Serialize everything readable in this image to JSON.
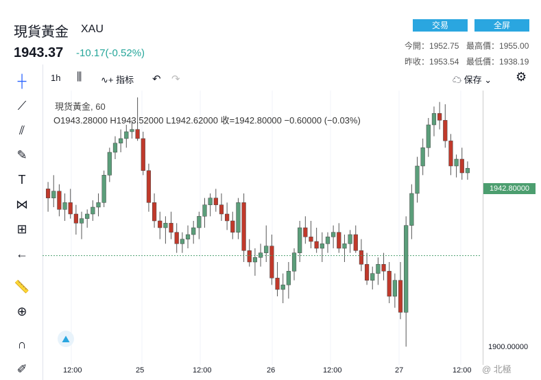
{
  "header": {
    "title": "現貨黃金",
    "symbol": "XAU",
    "price": "1943.37",
    "change": "-10.17(-0.52%)",
    "trade_btn": "交易",
    "full_btn": "全屏",
    "stats": {
      "open_label": "今開：",
      "open": "1952.75",
      "high_label": "最高價：",
      "high": "1955.00",
      "prev_label": "昨收：",
      "prev": "1953.54",
      "low_label": "最低價：",
      "low": "1938.19"
    }
  },
  "toolbar": {
    "interval": "1h",
    "indicators": "指标",
    "save": "保存"
  },
  "legend": {
    "name": "現货黃金, 60",
    "ohlc": "O1943.28000   H1943.52000   L1942.62000   收=1942.80000   −0.60000 (−0.03%)"
  },
  "axis": {
    "last_price": "1942.80000",
    "tick": "1900.00000",
    "xlabels": [
      "12:00",
      "25",
      "12:00",
      "26",
      "12:00",
      "27",
      "12:00"
    ]
  },
  "watermark": "@ 北極",
  "colors": {
    "up": "#26a69a",
    "down": "#ef5350",
    "up_fill": "#5b9e7a",
    "down_fill": "#c0392b"
  },
  "chart_data": {
    "type": "candlestick",
    "ylim": [
      1895,
      2015
    ],
    "ohlc": [
      [
        1972,
        1975,
        1962,
        1968
      ],
      [
        1968,
        1978,
        1964,
        1971
      ],
      [
        1971,
        1974,
        1960,
        1963
      ],
      [
        1963,
        1970,
        1958,
        1966
      ],
      [
        1966,
        1972,
        1959,
        1961
      ],
      [
        1961,
        1965,
        1952,
        1957
      ],
      [
        1957,
        1962,
        1950,
        1959
      ],
      [
        1959,
        1963,
        1955,
        1961
      ],
      [
        1961,
        1967,
        1958,
        1964
      ],
      [
        1964,
        1970,
        1960,
        1966
      ],
      [
        1966,
        1980,
        1964,
        1978
      ],
      [
        1978,
        1990,
        1975,
        1988
      ],
      [
        1988,
        1995,
        1985,
        1992
      ],
      [
        1992,
        1998,
        1988,
        1994
      ],
      [
        1994,
        2000,
        1990,
        1997
      ],
      [
        1997,
        2002,
        1994,
        1998
      ],
      [
        1998,
        2012,
        1993,
        1994
      ],
      [
        1994,
        1997,
        1978,
        1980
      ],
      [
        1980,
        1983,
        1962,
        1966
      ],
      [
        1966,
        1970,
        1955,
        1958
      ],
      [
        1958,
        1962,
        1950,
        1955
      ],
      [
        1955,
        1960,
        1948,
        1957
      ],
      [
        1957,
        1962,
        1950,
        1953
      ],
      [
        1953,
        1957,
        1944,
        1948
      ],
      [
        1948,
        1953,
        1944,
        1950
      ],
      [
        1950,
        1956,
        1946,
        1952
      ],
      [
        1952,
        1958,
        1948,
        1955
      ],
      [
        1955,
        1962,
        1950,
        1960
      ],
      [
        1960,
        1968,
        1955,
        1965
      ],
      [
        1965,
        1970,
        1960,
        1968
      ],
      [
        1968,
        1972,
        1962,
        1965
      ],
      [
        1965,
        1970,
        1958,
        1961
      ],
      [
        1961,
        1966,
        1954,
        1958
      ],
      [
        1958,
        1962,
        1950,
        1953
      ],
      [
        1953,
        1968,
        1950,
        1966
      ],
      [
        1966,
        1970,
        1940,
        1945
      ],
      [
        1945,
        1950,
        1938,
        1940
      ],
      [
        1940,
        1946,
        1934,
        1942
      ],
      [
        1942,
        1948,
        1938,
        1944
      ],
      [
        1944,
        1956,
        1940,
        1947
      ],
      [
        1947,
        1952,
        1930,
        1933
      ],
      [
        1933,
        1940,
        1925,
        1928
      ],
      [
        1928,
        1935,
        1922,
        1930
      ],
      [
        1930,
        1940,
        1924,
        1936
      ],
      [
        1936,
        1946,
        1932,
        1944
      ],
      [
        1944,
        1958,
        1940,
        1955
      ],
      [
        1955,
        1960,
        1948,
        1951
      ],
      [
        1951,
        1958,
        1946,
        1949
      ],
      [
        1949,
        1955,
        1944,
        1946
      ],
      [
        1946,
        1953,
        1940,
        1948
      ],
      [
        1948,
        1953,
        1944,
        1951
      ],
      [
        1951,
        1956,
        1946,
        1953
      ],
      [
        1953,
        1957,
        1944,
        1946
      ],
      [
        1946,
        1952,
        1940,
        1948
      ],
      [
        1948,
        1954,
        1944,
        1952
      ],
      [
        1952,
        1956,
        1944,
        1945
      ],
      [
        1945,
        1950,
        1936,
        1939
      ],
      [
        1939,
        1944,
        1930,
        1932
      ],
      [
        1932,
        1938,
        1928,
        1935
      ],
      [
        1935,
        1942,
        1930,
        1939
      ],
      [
        1939,
        1944,
        1932,
        1936
      ],
      [
        1936,
        1940,
        1922,
        1925
      ],
      [
        1925,
        1935,
        1920,
        1932
      ],
      [
        1932,
        1940,
        1915,
        1918
      ],
      [
        1918,
        1960,
        1903,
        1956
      ],
      [
        1956,
        1974,
        1950,
        1970
      ],
      [
        1970,
        1986,
        1966,
        1982
      ],
      [
        1982,
        1994,
        1978,
        1990
      ],
      [
        1990,
        2003,
        1986,
        2000
      ],
      [
        2000,
        2008,
        1995,
        2005
      ],
      [
        2005,
        2010,
        1998,
        2002
      ],
      [
        2002,
        2009,
        1990,
        1993
      ],
      [
        1993,
        1996,
        1978,
        1982
      ],
      [
        1982,
        1987,
        1977,
        1985
      ],
      [
        1985,
        1990,
        1976,
        1979
      ],
      [
        1979,
        1984,
        1976,
        1981
      ]
    ],
    "last_price": 1942.8
  }
}
